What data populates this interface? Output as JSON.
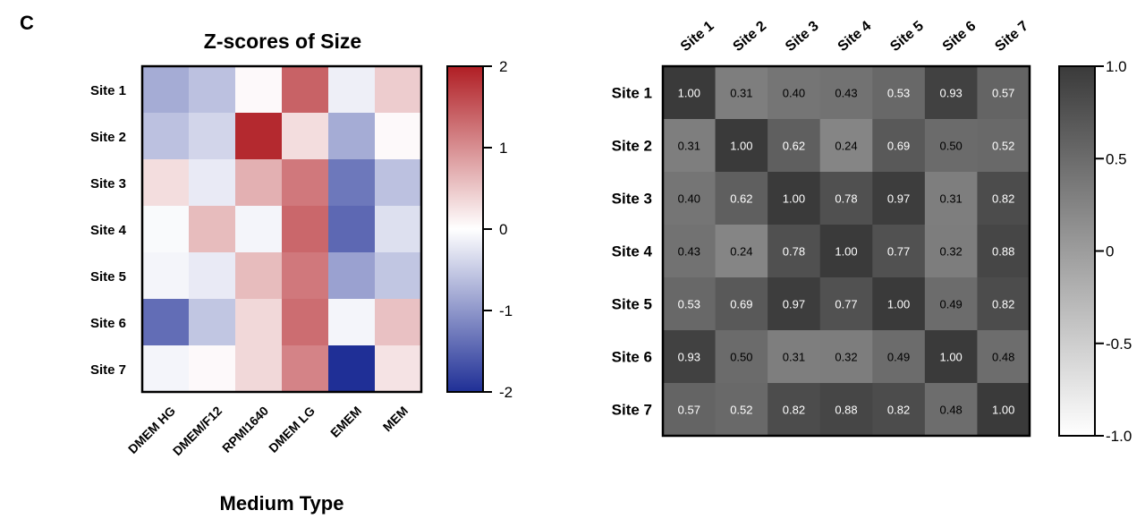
{
  "panel_label": "C",
  "chart_data": [
    {
      "type": "heatmap",
      "title": "Z-scores of Size",
      "xlabel": "Medium Type",
      "ylabel": "",
      "x_categories": [
        "DMEM HG",
        "DMEM/F12",
        "RPMI1640",
        "DMEM LG",
        "EMEM",
        "MEM"
      ],
      "y_categories": [
        "Site 1",
        "Site 2",
        "Site 3",
        "Site 4",
        "Site 5",
        "Site 6",
        "Site 7"
      ],
      "values": [
        [
          -0.8,
          -0.6,
          0.05,
          1.4,
          -0.15,
          0.45
        ],
        [
          -0.6,
          -0.4,
          1.9,
          0.3,
          -0.8,
          0.05
        ],
        [
          0.3,
          -0.2,
          0.7,
          1.2,
          -1.3,
          -0.6
        ],
        [
          -0.05,
          0.6,
          -0.1,
          1.35,
          -1.45,
          -0.3
        ],
        [
          -0.1,
          -0.2,
          0.6,
          1.2,
          -0.9,
          -0.55
        ],
        [
          -1.4,
          -0.55,
          0.35,
          1.3,
          -0.1,
          0.55
        ],
        [
          -0.1,
          0.05,
          0.35,
          1.1,
          -2.0,
          0.25
        ]
      ],
      "colorbar": {
        "min": -2,
        "max": 2,
        "ticks": [
          2,
          1,
          0,
          -1,
          -2
        ],
        "colors": {
          "low": "#1f2f96",
          "mid": "#ffffff",
          "high": "#b01e24"
        }
      }
    },
    {
      "type": "heatmap",
      "title": "",
      "xlabel": "",
      "ylabel": "",
      "x_categories": [
        "Site 1",
        "Site 2",
        "Site 3",
        "Site 4",
        "Site 5",
        "Site 6",
        "Site 7"
      ],
      "y_categories": [
        "Site 1",
        "Site 2",
        "Site 3",
        "Site 4",
        "Site 5",
        "Site 6",
        "Site 7"
      ],
      "values": [
        [
          1.0,
          0.31,
          0.4,
          0.43,
          0.53,
          0.93,
          0.57
        ],
        [
          0.31,
          1.0,
          0.62,
          0.24,
          0.69,
          0.5,
          0.52
        ],
        [
          0.4,
          0.62,
          1.0,
          0.78,
          0.97,
          0.31,
          0.82
        ],
        [
          0.43,
          0.24,
          0.78,
          1.0,
          0.77,
          0.32,
          0.88
        ],
        [
          0.53,
          0.69,
          0.97,
          0.77,
          1.0,
          0.49,
          0.82
        ],
        [
          0.93,
          0.5,
          0.31,
          0.32,
          0.49,
          1.0,
          0.48
        ],
        [
          0.57,
          0.52,
          0.82,
          0.88,
          0.82,
          0.48,
          1.0
        ]
      ],
      "cell_labels": [
        [
          "1.00",
          "0.31",
          "0.40",
          "0.43",
          "0.53",
          "0.93",
          "0.57"
        ],
        [
          "0.31",
          "1.00",
          "0.62",
          "0.24",
          "0.69",
          "0.50",
          "0.52"
        ],
        [
          "0.40",
          "0.62",
          "1.00",
          "0.78",
          "0.97",
          "0.31",
          "0.82"
        ],
        [
          "0.43",
          "0.24",
          "0.78",
          "1.00",
          "0.77",
          "0.32",
          "0.88"
        ],
        [
          "0.53",
          "0.69",
          "0.97",
          "0.77",
          "1.00",
          "0.49",
          "0.82"
        ],
        [
          "0.93",
          "0.50",
          "0.31",
          "0.32",
          "0.49",
          "1.00",
          "0.48"
        ],
        [
          "0.57",
          "0.52",
          "0.82",
          "0.88",
          "0.82",
          "0.48",
          "1.00"
        ]
      ],
      "colorbar": {
        "min": -1.0,
        "max": 1.0,
        "ticks": [
          "1.0",
          "0.5",
          "0",
          "-0.5",
          "-1.0"
        ],
        "colors": {
          "low": "#ffffff",
          "high": "#3a3a3a"
        }
      }
    }
  ]
}
